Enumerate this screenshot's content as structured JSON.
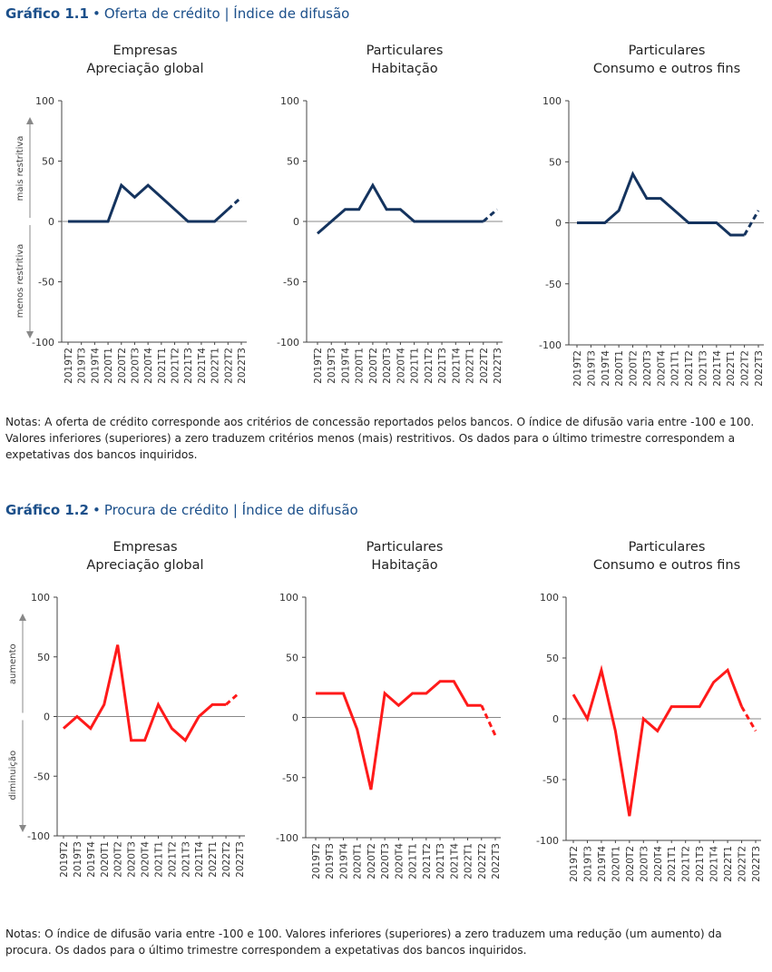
{
  "colors": {
    "title": "#1b4f8a",
    "series1": "#14335e",
    "series2": "#ff1a1a",
    "axis": "#444444"
  },
  "fig1": {
    "number": "Gráfico 1.1",
    "bullet": "•",
    "title": "Oferta de crédito | Índice de difusão",
    "up_label": "mais restritiva",
    "down_label": "menos restritiva",
    "notes": "Notas: A oferta de crédito corresponde aos critérios de concessão reportados pelos bancos. O índice de difusão varia entre -100 e 100. Valores inferiores (superiores) a zero traduzem critérios menos (mais) restritivos. Os dados para o último trimestre correspondem a expetativas dos bancos inquiridos."
  },
  "fig2": {
    "number": "Gráfico 1.2",
    "bullet": "•",
    "title": "Procura de crédito | Índice de difusão",
    "up_label": "aumento",
    "down_label": "diminuição",
    "notes": "Notas: O índice de difusão varia entre -100 e 100. Valores inferiores (superiores) a zero traduzem uma redução (um aumento) da procura. Os dados para o último trimestre correspondem a expetativas dos bancos inquiridos."
  },
  "chart_data": [
    {
      "figure": "fig1",
      "type": "line",
      "title": "Empresas",
      "subtitle": "Apreciação global",
      "categories": [
        "2019T2",
        "2019T3",
        "2019T4",
        "2020T1",
        "2020T2",
        "2020T3",
        "2020T4",
        "2021T1",
        "2021T2",
        "2021T3",
        "2021T4",
        "2022T1",
        "2022T2",
        "2022T3"
      ],
      "values": [
        0,
        0,
        0,
        0,
        30,
        20,
        30,
        20,
        10,
        0,
        0,
        0,
        10,
        20
      ],
      "dashed_last_segment": true,
      "ylim": [
        -100,
        100
      ],
      "yticks": [
        100,
        50,
        0,
        -50,
        -100
      ],
      "color": "#14335e"
    },
    {
      "figure": "fig1",
      "type": "line",
      "title": "Particulares",
      "subtitle": "Habitação",
      "categories": [
        "2019T2",
        "2019T3",
        "2019T4",
        "2020T1",
        "2020T2",
        "2020T3",
        "2020T4",
        "2021T1",
        "2021T2",
        "2021T3",
        "2021T4",
        "2022T1",
        "2022T2",
        "2022T3"
      ],
      "values": [
        -10,
        0,
        10,
        10,
        30,
        10,
        10,
        0,
        0,
        0,
        0,
        0,
        0,
        10
      ],
      "dashed_last_segment": true,
      "ylim": [
        -100,
        100
      ],
      "yticks": [
        100,
        50,
        0,
        -50,
        -100
      ],
      "color": "#14335e"
    },
    {
      "figure": "fig1",
      "type": "line",
      "title": "Particulares",
      "subtitle": "Consumo e outros fins",
      "categories": [
        "2019T2",
        "2019T3",
        "2019T4",
        "2020T1",
        "2020T2",
        "2020T3",
        "2020T4",
        "2021T1",
        "2021T2",
        "2021T3",
        "2021T4",
        "2022T1",
        "2022T2",
        "2022T3"
      ],
      "values": [
        0,
        0,
        0,
        10,
        40,
        20,
        20,
        10,
        0,
        0,
        0,
        -10,
        -10,
        10
      ],
      "dashed_last_segment": true,
      "ylim": [
        -100,
        100
      ],
      "yticks": [
        100,
        50,
        0,
        -50,
        -100
      ],
      "color": "#14335e"
    },
    {
      "figure": "fig2",
      "type": "line",
      "title": "Empresas",
      "subtitle": "Apreciação global",
      "categories": [
        "2019T2",
        "2019T3",
        "2019T4",
        "2020T1",
        "2020T2",
        "2020T3",
        "2020T4",
        "2021T1",
        "2021T2",
        "2021T3",
        "2021T4",
        "2022T1",
        "2022T2",
        "2022T3"
      ],
      "values": [
        -10,
        0,
        -10,
        10,
        60,
        -20,
        -20,
        10,
        -10,
        -20,
        0,
        10,
        10,
        20
      ],
      "dashed_last_segment": true,
      "ylim": [
        -100,
        100
      ],
      "yticks": [
        100,
        50,
        0,
        -50,
        -100
      ],
      "color": "#ff1a1a"
    },
    {
      "figure": "fig2",
      "type": "line",
      "title": "Particulares",
      "subtitle": "Habitação",
      "categories": [
        "2019T2",
        "2019T3",
        "2019T4",
        "2020T1",
        "2020T2",
        "2020T3",
        "2020T4",
        "2021T1",
        "2021T2",
        "2021T3",
        "2021T4",
        "2022T1",
        "2022T2",
        "2022T3"
      ],
      "values": [
        20,
        20,
        20,
        -10,
        -60,
        20,
        10,
        20,
        20,
        30,
        30,
        10,
        10,
        -15
      ],
      "dashed_last_segment": true,
      "ylim": [
        -100,
        100
      ],
      "yticks": [
        100,
        50,
        0,
        -50,
        -100
      ],
      "color": "#ff1a1a"
    },
    {
      "figure": "fig2",
      "type": "line",
      "title": "Particulares",
      "subtitle": "Consumo e outros fins",
      "categories": [
        "2019T2",
        "2019T3",
        "2019T4",
        "2020T1",
        "2020T2",
        "2020T3",
        "2020T4",
        "2021T1",
        "2021T2",
        "2021T3",
        "2021T4",
        "2022T1",
        "2022T2",
        "2022T3"
      ],
      "values": [
        20,
        0,
        40,
        -10,
        -80,
        0,
        -10,
        10,
        10,
        10,
        30,
        40,
        10,
        -10
      ],
      "dashed_last_segment": true,
      "ylim": [
        -100,
        100
      ],
      "yticks": [
        100,
        50,
        0,
        -50,
        -100
      ],
      "color": "#ff1a1a"
    }
  ]
}
